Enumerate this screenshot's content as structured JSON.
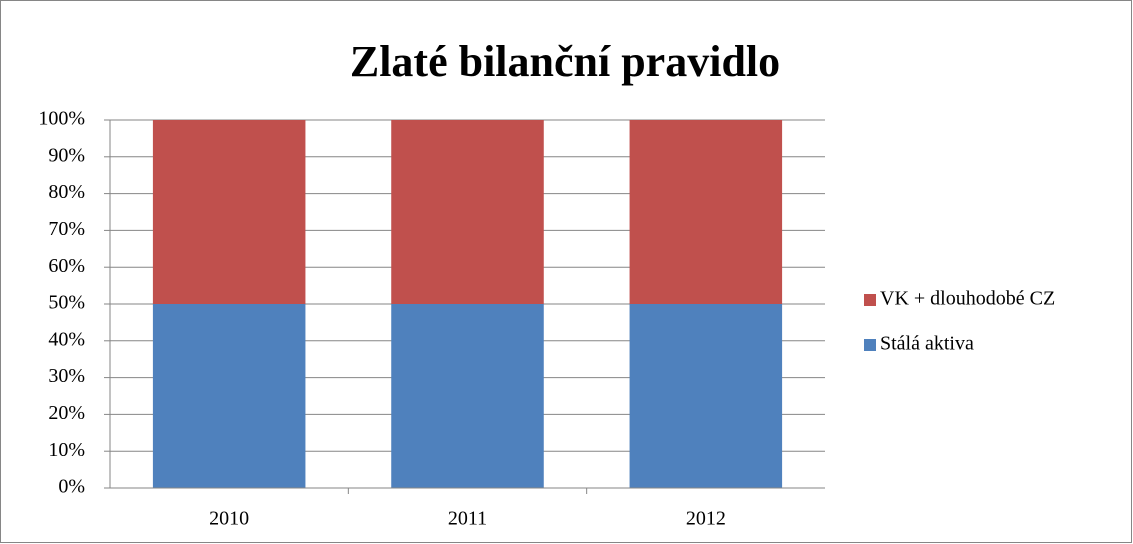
{
  "chart_data": {
    "type": "stacked_bar",
    "title": "Zlaté bilanční pravidlo",
    "categories": [
      "2010",
      "2011",
      "2012"
    ],
    "series": [
      {
        "name": "Stálá aktiva",
        "color": "#4f81bd",
        "values": [
          50,
          50,
          50
        ]
      },
      {
        "name": "VK + dlouhodobé CZ",
        "color": "#c0504d",
        "values": [
          50,
          50,
          50
        ]
      }
    ],
    "ylim": [
      0,
      100
    ],
    "yticks": [
      {
        "value": 0,
        "label": "0%"
      },
      {
        "value": 10,
        "label": "10%"
      },
      {
        "value": 20,
        "label": "20%"
      },
      {
        "value": 30,
        "label": "30%"
      },
      {
        "value": 40,
        "label": "40%"
      },
      {
        "value": 50,
        "label": "50%"
      },
      {
        "value": 60,
        "label": "60%"
      },
      {
        "value": 70,
        "label": "70%"
      },
      {
        "value": 80,
        "label": "80%"
      },
      {
        "value": 90,
        "label": "90%"
      },
      {
        "value": 100,
        "label": "100%"
      }
    ],
    "grid": true,
    "legend": "right"
  }
}
